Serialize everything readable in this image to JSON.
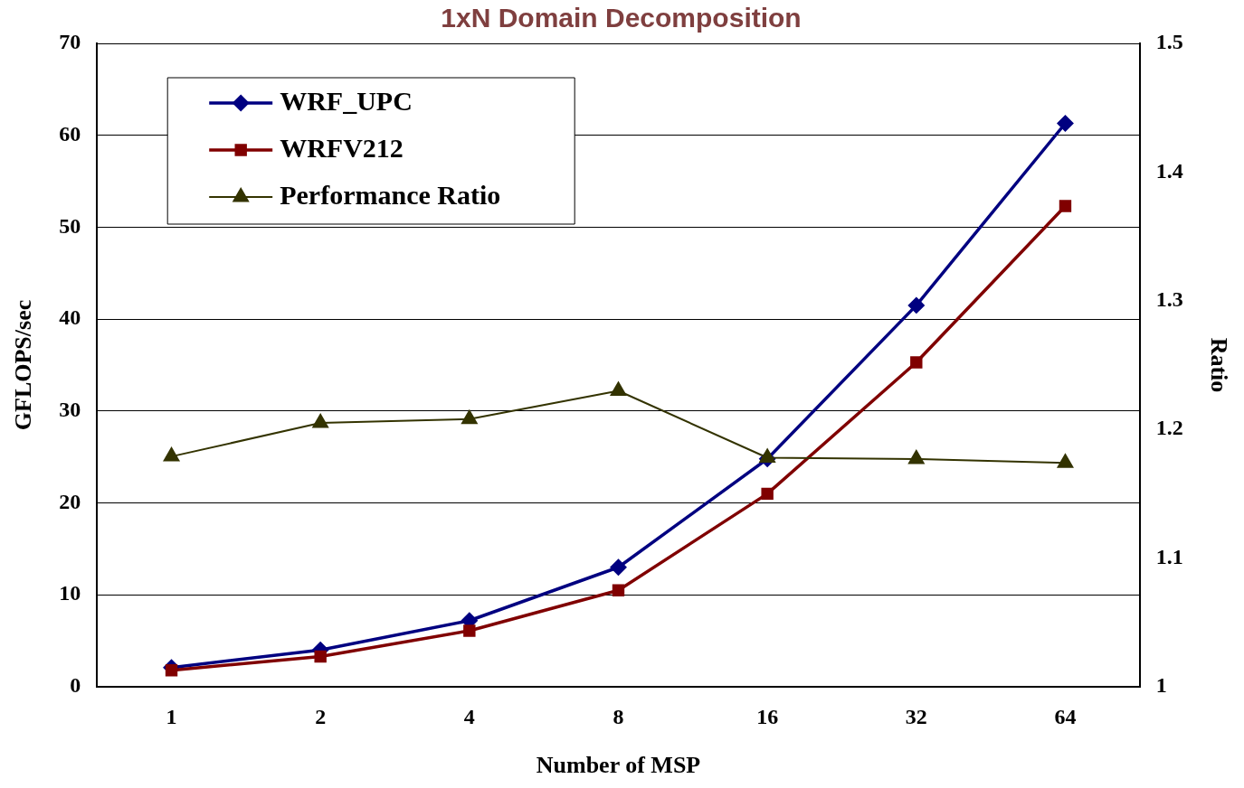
{
  "chart_data": {
    "type": "line",
    "title": "1xN Domain Decomposition",
    "xlabel": "Number of MSP",
    "ylabel": "GFLOPS/sec",
    "y2label": "Ratio",
    "categories": [
      "1",
      "2",
      "4",
      "8",
      "16",
      "32",
      "64"
    ],
    "series": [
      {
        "name": "WRF_UPC",
        "color": "#000080",
        "marker": "diamond",
        "values": [
          2.1,
          4.0,
          7.2,
          13.0,
          24.8,
          41.5,
          61.3
        ]
      },
      {
        "name": "WRFV212",
        "color": "#800000",
        "marker": "square",
        "values": [
          1.8,
          3.3,
          6.1,
          10.5,
          21.0,
          35.3,
          52.3
        ]
      },
      {
        "name": "Performance Ratio",
        "color": "#333300",
        "marker": "triangle",
        "axis": "y2",
        "values": [
          1.179,
          1.205,
          1.208,
          1.23,
          1.178,
          1.177,
          1.174
        ]
      }
    ],
    "ylim": [
      0,
      70
    ],
    "yticks": [
      0,
      10,
      20,
      30,
      40,
      50,
      60,
      70
    ],
    "y2lim": [
      1,
      1.5
    ],
    "y2ticks": [
      1,
      1.1,
      1.2,
      1.3,
      1.4,
      1.5
    ],
    "grid": "y",
    "legend": "top left"
  }
}
